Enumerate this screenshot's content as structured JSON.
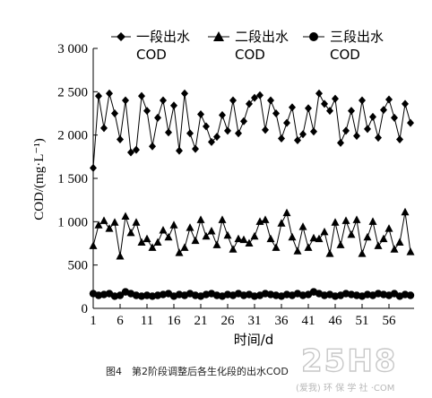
{
  "chart_data": {
    "type": "line",
    "title": "",
    "xlabel": "时间/d",
    "ylabel": "COD/(mg·L⁻¹)",
    "xlim": [
      1,
      60
    ],
    "ylim": [
      0,
      3000
    ],
    "x_ticks": [
      1,
      6,
      11,
      16,
      21,
      26,
      31,
      36,
      41,
      46,
      51,
      56
    ],
    "y_ticks": [
      0,
      500,
      1000,
      1500,
      2000,
      2500,
      3000
    ],
    "y_tick_labels": [
      "0",
      "500",
      "1 000",
      "1 500",
      "2 000",
      "2 500",
      "3 000"
    ],
    "legend_position": "top",
    "grid": false,
    "x": [
      1,
      2,
      3,
      4,
      5,
      6,
      7,
      8,
      9,
      10,
      11,
      12,
      13,
      14,
      15,
      16,
      17,
      18,
      19,
      20,
      21,
      22,
      23,
      24,
      25,
      26,
      27,
      28,
      29,
      30,
      31,
      32,
      33,
      34,
      35,
      36,
      37,
      38,
      39,
      40,
      41,
      42,
      43,
      44,
      45,
      46,
      47,
      48,
      49,
      50,
      51,
      52,
      53,
      54,
      55,
      56,
      57,
      58,
      59,
      60
    ],
    "series": [
      {
        "name": "一段出水 COD",
        "marker": "diamond",
        "values": [
          1620,
          2450,
          2080,
          2480,
          2250,
          1950,
          2400,
          1800,
          1830,
          2450,
          2280,
          1870,
          2200,
          2400,
          2030,
          2340,
          1820,
          2480,
          2020,
          1840,
          2240,
          2100,
          1920,
          1980,
          2230,
          2050,
          2400,
          2020,
          2160,
          2360,
          2430,
          2460,
          2060,
          2400,
          2250,
          1960,
          2140,
          2320,
          1940,
          2010,
          2310,
          2040,
          2480,
          2360,
          2280,
          2420,
          1910,
          2050,
          2280,
          1990,
          2400,
          2070,
          2210,
          1970,
          2290,
          2410,
          2200,
          1950,
          2360,
          2140
        ]
      },
      {
        "name": "二段出水 COD",
        "marker": "triangle",
        "values": [
          720,
          960,
          1010,
          920,
          990,
          600,
          1060,
          870,
          990,
          760,
          800,
          700,
          760,
          900,
          820,
          960,
          640,
          700,
          930,
          780,
          1020,
          830,
          890,
          730,
          1020,
          840,
          680,
          800,
          790,
          750,
          830,
          1000,
          1020,
          800,
          700,
          980,
          1100,
          820,
          660,
          940,
          700,
          810,
          800,
          880,
          630,
          990,
          730,
          1010,
          850,
          1020,
          630,
          820,
          1000,
          720,
          800,
          920,
          680,
          760,
          1110,
          650
        ]
      },
      {
        "name": "三段出水 COD",
        "marker": "circle",
        "values": [
          170,
          150,
          160,
          170,
          140,
          150,
          190,
          170,
          150,
          140,
          150,
          140,
          150,
          160,
          170,
          140,
          160,
          150,
          170,
          150,
          140,
          160,
          170,
          150,
          140,
          160,
          150,
          170,
          150,
          160,
          140,
          150,
          170,
          160,
          150,
          140,
          160,
          150,
          170,
          150,
          160,
          190,
          170,
          150,
          160,
          140,
          150,
          170,
          160,
          150,
          140,
          160,
          150,
          170,
          160,
          150,
          170,
          140,
          160,
          150
        ]
      }
    ]
  },
  "legend": {
    "items": [
      {
        "line1": "一段出水",
        "line2": "COD",
        "marker": "diamond"
      },
      {
        "line1": "二段出水",
        "line2": "COD",
        "marker": "triangle"
      },
      {
        "line1": "三段出水",
        "line2": "COD",
        "marker": "circle"
      }
    ]
  },
  "caption": "图4　第2阶段调整后各生化段的出水COD",
  "watermark": {
    "brand": "25H8",
    "sub": "(爱我) 环 保 学 社 ·COM"
  },
  "colors": {
    "series": "#000000",
    "watermark": "#c8c8c8"
  }
}
